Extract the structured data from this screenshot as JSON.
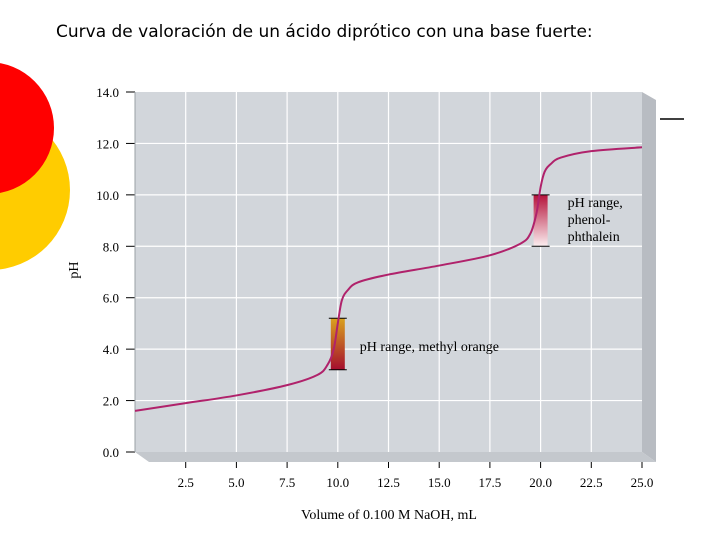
{
  "slide": {
    "title": "Curva de valoración de un ácido diprótico con una base fuerte:"
  },
  "colors": {
    "plot_background": "#d2d6db",
    "curve": "#b0226b",
    "red_decoration": "#ff0000",
    "yellow_decoration": "#ffcc00",
    "methyl_orange_top": "#d9a21e",
    "methyl_orange_bottom": "#a50e2e",
    "phenolphthalein_top": "#b5123a",
    "phenolphthalein_bottom": "#fbeef0"
  },
  "chart_data": {
    "type": "line",
    "title": "",
    "xlabel": "Volume of 0.100 M NaOH, mL",
    "ylabel": "pH",
    "xlim": [
      0,
      25
    ],
    "ylim": [
      0,
      14
    ],
    "grid": true,
    "x_ticks": [
      "2.5",
      "5.0",
      "7.5",
      "10.0",
      "12.5",
      "15.0",
      "17.5",
      "20.0",
      "22.5",
      "25.0"
    ],
    "y_ticks": [
      "0.0",
      "2.0",
      "4.0",
      "6.0",
      "8.0",
      "10.0",
      "12.0",
      "14.0"
    ],
    "series": [
      {
        "x": [
          0,
          2.5,
          5.0,
          7.5,
          9.0,
          9.5,
          9.8,
          10.0,
          10.2,
          10.5,
          11.0,
          12.5,
          15.0,
          17.5,
          19.0,
          19.5,
          19.8,
          20.0,
          20.2,
          20.5,
          21.0,
          22.5,
          25.0
        ],
        "y": [
          1.6,
          1.9,
          2.2,
          2.6,
          3.0,
          3.4,
          4.0,
          5.0,
          5.9,
          6.3,
          6.6,
          6.9,
          7.25,
          7.65,
          8.1,
          8.5,
          9.3,
          10.3,
          10.9,
          11.2,
          11.45,
          11.7,
          11.85
        ]
      }
    ],
    "annotations": [
      {
        "name": "methyl-orange-range",
        "label": "pH range, methyl orange",
        "x": 10.0,
        "y_range": [
          3.2,
          5.2
        ]
      },
      {
        "name": "phenolphthalein-range",
        "label": [
          "pH range,",
          "phenol-",
          "phthalein"
        ],
        "x": 20.0,
        "y_range": [
          8.0,
          10.0
        ]
      }
    ]
  }
}
